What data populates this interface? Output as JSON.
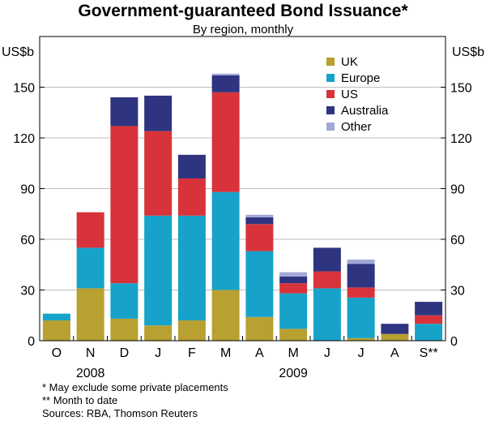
{
  "chart_data": {
    "type": "bar",
    "stacked": true,
    "title": "Government-guaranteed Bond Issuance*",
    "subtitle": "By region, monthly",
    "ylabel_left": "US$b",
    "ylabel_right": "US$b",
    "ylim": [
      0,
      180
    ],
    "yticks": [
      0,
      30,
      60,
      90,
      120,
      150
    ],
    "categories": [
      "O",
      "N",
      "D",
      "J",
      "F",
      "M",
      "A",
      "M",
      "J",
      "J",
      "A",
      "S**"
    ],
    "year_labels": [
      {
        "label": "2008",
        "category_index": 1
      },
      {
        "label": "2009",
        "category_index": 7
      }
    ],
    "legend_position": "top-right",
    "series": [
      {
        "name": "UK",
        "color": "#b8a031",
        "values": [
          12,
          31,
          13,
          9,
          12,
          30,
          14,
          7,
          0,
          1.5,
          4,
          0
        ]
      },
      {
        "name": "Europe",
        "color": "#17a3c9",
        "values": [
          4,
          24,
          21,
          65,
          62,
          58,
          39,
          21,
          31,
          24,
          0,
          10
        ]
      },
      {
        "name": "US",
        "color": "#d8333a",
        "values": [
          0,
          21,
          93,
          50,
          22,
          59,
          16,
          6,
          10,
          6,
          0,
          5
        ]
      },
      {
        "name": "Australia",
        "color": "#2e3480",
        "values": [
          0,
          0,
          17,
          21,
          14,
          10,
          4,
          4,
          14,
          14,
          6,
          8
        ]
      },
      {
        "name": "Other",
        "color": "#a2a8d6",
        "values": [
          0,
          0,
          0,
          0,
          0,
          1,
          1.5,
          2.5,
          0,
          2.5,
          0,
          0
        ]
      }
    ]
  },
  "notes": {
    "footnote1": "*  May exclude some private placements",
    "footnote2": "** Month to date",
    "sources": "Sources: RBA, Thomson Reuters"
  }
}
